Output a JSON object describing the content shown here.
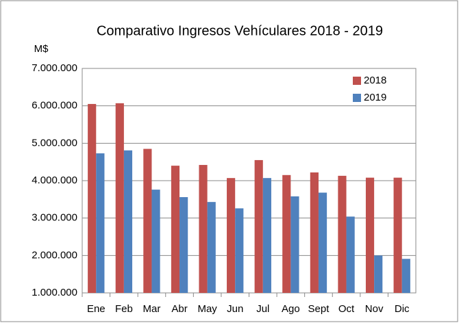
{
  "chart_data": {
    "type": "bar",
    "title": "Comparativo Ingresos Vehículares 2018 - 2019",
    "y_label": "M$",
    "categories": [
      "Ene",
      "Feb",
      "Mar",
      "Abr",
      "May",
      "Jun",
      "Jul",
      "Ago",
      "Sept",
      "Oct",
      "Nov",
      "Dic"
    ],
    "series": [
      {
        "name": "2018",
        "color": "#c0504d",
        "values": [
          6050000,
          6070000,
          4850000,
          4400000,
          4420000,
          4070000,
          4550000,
          4150000,
          4220000,
          4130000,
          4080000,
          4080000
        ]
      },
      {
        "name": "2019",
        "color": "#4f81bd",
        "values": [
          4730000,
          4810000,
          3760000,
          3560000,
          3430000,
          3260000,
          4070000,
          3580000,
          3680000,
          3040000,
          2000000,
          1910000
        ]
      }
    ],
    "ylim": [
      1000000,
      7000000
    ],
    "yticks": [
      {
        "value": 1000000,
        "label": "1.000.000"
      },
      {
        "value": 2000000,
        "label": "2.000.000"
      },
      {
        "value": 3000000,
        "label": "3.000.000"
      },
      {
        "value": 4000000,
        "label": "4.000.000"
      },
      {
        "value": 5000000,
        "label": "5.000.000"
      },
      {
        "value": 6000000,
        "label": "6.000.000"
      },
      {
        "value": 7000000,
        "label": "7.000.000"
      }
    ],
    "grid": true,
    "legend": "top-right"
  }
}
